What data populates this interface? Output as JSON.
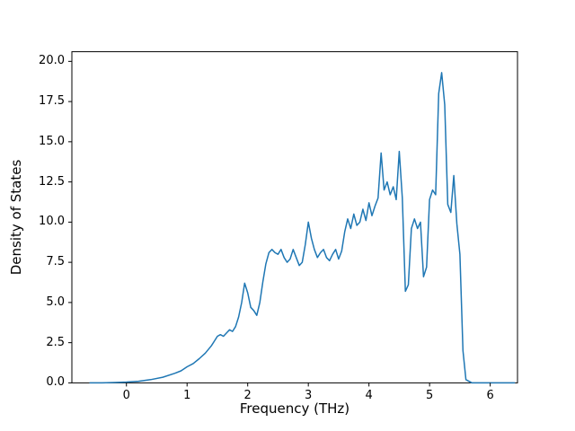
{
  "chart_data": {
    "type": "line",
    "title": "",
    "xlabel": "Frequency (THz)",
    "ylabel": "Density of States",
    "xlim": [
      -0.9,
      6.45
    ],
    "ylim": [
      0,
      20.6
    ],
    "grid": false,
    "legend": "none",
    "line_color": "#1f77b4",
    "line_width": 1.5,
    "x_ticks": [
      0,
      1,
      2,
      3,
      4,
      5,
      6
    ],
    "x_tick_labels": [
      "0",
      "1",
      "2",
      "3",
      "4",
      "5",
      "6"
    ],
    "y_ticks": [
      0,
      2.5,
      5,
      7.5,
      10,
      12.5,
      15,
      17.5,
      20
    ],
    "y_tick_labels": [
      "0.0",
      "2.5",
      "5.0",
      "7.5",
      "10.0",
      "12.5",
      "15.0",
      "17.5",
      "20.0"
    ],
    "x": [
      -0.6,
      -0.4,
      -0.2,
      0.0,
      0.2,
      0.4,
      0.6,
      0.8,
      0.9,
      1.0,
      1.1,
      1.2,
      1.3,
      1.4,
      1.45,
      1.5,
      1.55,
      1.6,
      1.65,
      1.7,
      1.75,
      1.8,
      1.85,
      1.9,
      1.95,
      2.0,
      2.05,
      2.1,
      2.15,
      2.2,
      2.25,
      2.3,
      2.35,
      2.4,
      2.45,
      2.5,
      2.55,
      2.6,
      2.65,
      2.7,
      2.75,
      2.8,
      2.85,
      2.9,
      2.95,
      3.0,
      3.05,
      3.1,
      3.15,
      3.2,
      3.25,
      3.3,
      3.35,
      3.4,
      3.45,
      3.5,
      3.55,
      3.6,
      3.65,
      3.7,
      3.75,
      3.8,
      3.85,
      3.9,
      3.95,
      4.0,
      4.05,
      4.1,
      4.15,
      4.2,
      4.25,
      4.3,
      4.35,
      4.4,
      4.45,
      4.5,
      4.55,
      4.6,
      4.65,
      4.7,
      4.75,
      4.8,
      4.85,
      4.9,
      4.95,
      5.0,
      5.05,
      5.1,
      5.15,
      5.2,
      5.25,
      5.3,
      5.35,
      5.4,
      5.45,
      5.5,
      5.55,
      5.6,
      5.7,
      5.9,
      6.2,
      6.4
    ],
    "y": [
      0,
      0,
      0.02,
      0.05,
      0.1,
      0.2,
      0.35,
      0.6,
      0.75,
      1.0,
      1.2,
      1.5,
      1.85,
      2.3,
      2.6,
      2.9,
      3.0,
      2.9,
      3.1,
      3.3,
      3.2,
      3.5,
      4.1,
      5.0,
      6.2,
      5.6,
      4.7,
      4.5,
      4.2,
      5.0,
      6.3,
      7.4,
      8.1,
      8.3,
      8.1,
      8.0,
      8.3,
      7.8,
      7.5,
      7.7,
      8.3,
      7.8,
      7.3,
      7.5,
      8.6,
      10.0,
      9.0,
      8.3,
      7.8,
      8.1,
      8.3,
      7.8,
      7.6,
      8.0,
      8.3,
      7.7,
      8.2,
      9.4,
      10.2,
      9.6,
      10.5,
      9.8,
      10.0,
      10.8,
      10.1,
      11.2,
      10.4,
      11.0,
      11.5,
      14.3,
      12.0,
      12.5,
      11.7,
      12.2,
      11.4,
      14.4,
      11.5,
      5.7,
      6.1,
      9.6,
      10.2,
      9.6,
      10.0,
      6.6,
      7.2,
      11.4,
      12.0,
      11.7,
      18.0,
      19.3,
      17.3,
      11.1,
      10.6,
      12.9,
      9.9,
      8.0,
      2.0,
      0.2,
      0.0,
      0.0,
      0.0,
      0.0
    ]
  }
}
